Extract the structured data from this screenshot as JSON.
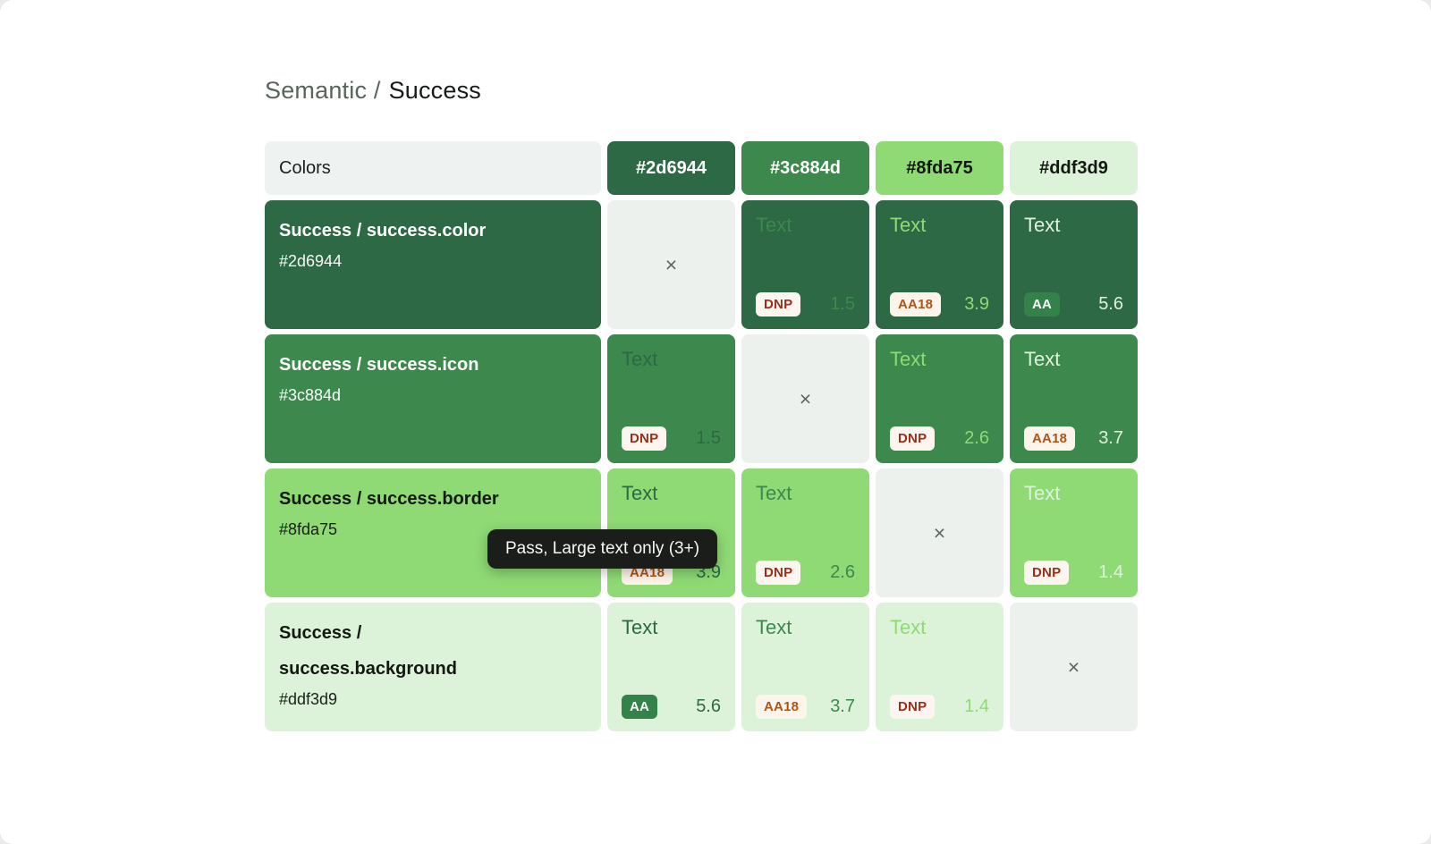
{
  "page": {
    "background": "#e8eaeb",
    "card_background": "#ffffff"
  },
  "title": {
    "prefix": "Semantic /",
    "name": "Success"
  },
  "table": {
    "corner_label": "Colors",
    "sample_text": "Text",
    "diagonal_mark": "×",
    "diagonal_background": "#edf1ee",
    "corner_background": "#eef2f0",
    "columns": [
      {
        "hex": "#2d6944",
        "label_color": "#ffffff"
      },
      {
        "hex": "#3c884d",
        "label_color": "#ffffff"
      },
      {
        "hex": "#8fda75",
        "label_color": "#131812"
      },
      {
        "hex": "#ddf3d9",
        "label_color": "#131812"
      }
    ],
    "rows": [
      {
        "name": "Success / success.color",
        "hex": "#2d6944",
        "text_color": "#ffffff",
        "cells": [
          {
            "diagonal": true
          },
          {
            "badge": "DNP",
            "ratio": "1.5"
          },
          {
            "badge": "AA18",
            "ratio": "3.9"
          },
          {
            "badge": "AA",
            "ratio": "5.6"
          }
        ]
      },
      {
        "name": "Success / success.icon",
        "hex": "#3c884d",
        "text_color": "#ffffff",
        "cells": [
          {
            "badge": "DNP",
            "ratio": "1.5"
          },
          {
            "diagonal": true
          },
          {
            "badge": "DNP",
            "ratio": "2.6"
          },
          {
            "badge": "AA18",
            "ratio": "3.7"
          }
        ]
      },
      {
        "name": "Success / success.border",
        "hex": "#8fda75",
        "text_color": "#131812",
        "cells": [
          {
            "badge": "AA18",
            "ratio": "3.9"
          },
          {
            "badge": "DNP",
            "ratio": "2.6"
          },
          {
            "diagonal": true
          },
          {
            "badge": "DNP",
            "ratio": "1.4"
          }
        ]
      },
      {
        "name": "Success / success.background",
        "hex": "#ddf3d9",
        "text_color": "#131812",
        "cells": [
          {
            "badge": "AA",
            "ratio": "5.6"
          },
          {
            "badge": "AA18",
            "ratio": "3.7"
          },
          {
            "badge": "DNP",
            "ratio": "1.4"
          },
          {
            "diagonal": true
          }
        ]
      }
    ]
  },
  "badges": {
    "DNP": {
      "background": "#fdf5f0",
      "color": "#9c2d17"
    },
    "AA18": {
      "background": "#fdf4ec",
      "color": "#b05416"
    },
    "AA": {
      "background": "#338249",
      "color": "#ffffff"
    }
  },
  "tooltip": {
    "text": "Pass, Large text only (3+)",
    "background": "#1a1d1a",
    "color": "#f5f6f5"
  }
}
